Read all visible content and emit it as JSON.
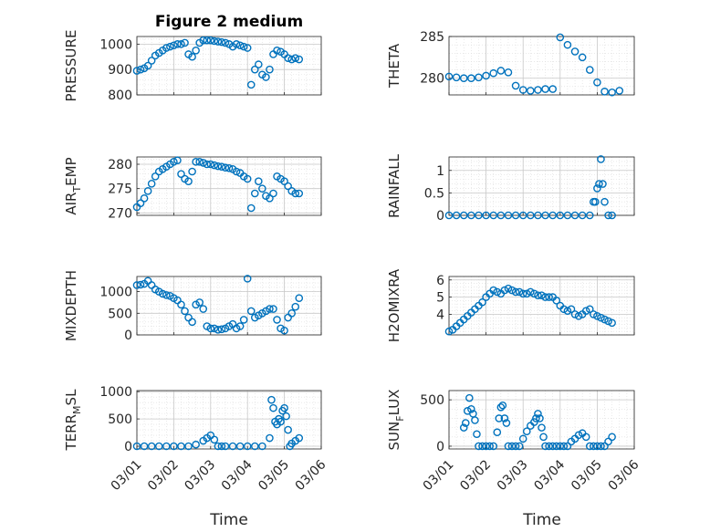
{
  "figure": {
    "title": "Figure 2 medium",
    "marker_color": "#0072BD",
    "x_ticks": [
      "03/01",
      "03/02",
      "03/03",
      "03/04",
      "03/05",
      "03/06"
    ],
    "x_label": "Time"
  },
  "chart_data": [
    {
      "type": "scatter",
      "id": "pressure",
      "ylabel": "PRESSURE",
      "ylabel_parts": [
        "PRESSURE"
      ],
      "xlim": [
        1,
        6
      ],
      "ylim": [
        800,
        1030
      ],
      "yticks": [
        800,
        900,
        1000
      ],
      "ytick_labels": [
        "800",
        "900",
        "1000"
      ],
      "title": "Figure 2 medium",
      "x": [
        1.0,
        1.1,
        1.2,
        1.3,
        1.4,
        1.5,
        1.6,
        1.7,
        1.8,
        1.9,
        2.0,
        2.1,
        2.2,
        2.3,
        2.4,
        2.5,
        2.6,
        2.7,
        2.8,
        2.9,
        3.0,
        3.1,
        3.2,
        3.3,
        3.4,
        3.5,
        3.6,
        3.7,
        3.8,
        3.9,
        4.0,
        4.1,
        4.2,
        4.3,
        4.4,
        4.5,
        4.6,
        4.7,
        4.8,
        4.9,
        5.0,
        5.1,
        5.2,
        5.3,
        5.4
      ],
      "y": [
        895,
        900,
        905,
        915,
        935,
        955,
        965,
        975,
        985,
        990,
        995,
        1000,
        1000,
        1005,
        960,
        950,
        975,
        1005,
        1015,
        1015,
        1015,
        1012,
        1010,
        1008,
        1005,
        1000,
        990,
        1000,
        995,
        990,
        985,
        840,
        900,
        920,
        880,
        870,
        900,
        960,
        975,
        970,
        960,
        945,
        940,
        945,
        940
      ]
    },
    {
      "type": "scatter",
      "id": "theta",
      "ylabel": "THETA",
      "ylabel_parts": [
        "THETA"
      ],
      "xlim": [
        1,
        6
      ],
      "ylim": [
        278,
        285
      ],
      "yticks": [
        280,
        285
      ],
      "ytick_labels": [
        "280",
        "285"
      ],
      "x": [
        1.0,
        1.2,
        1.4,
        1.6,
        1.8,
        2.0,
        2.2,
        2.4,
        2.6,
        2.8,
        3.0,
        3.2,
        3.4,
        3.6,
        3.8,
        4.0,
        4.2,
        4.4,
        4.6,
        4.8,
        5.0,
        5.2,
        5.4,
        5.6
      ],
      "y": [
        280.2,
        280.1,
        280.0,
        280.0,
        280.1,
        280.3,
        280.6,
        280.9,
        280.7,
        279.1,
        278.6,
        278.5,
        278.6,
        278.7,
        278.7,
        284.9,
        284.0,
        283.2,
        282.5,
        281.0,
        279.5,
        278.4,
        278.3,
        278.5
      ]
    },
    {
      "type": "scatter",
      "id": "air-temp",
      "ylabel": "AIR_TEMP",
      "ylabel_parts": [
        "AIR",
        "T",
        "EMP"
      ],
      "xlim": [
        1,
        6
      ],
      "ylim": [
        269.5,
        281.5
      ],
      "yticks": [
        270,
        275,
        280
      ],
      "ytick_labels": [
        "270",
        "275",
        "280"
      ],
      "x": [
        1.0,
        1.1,
        1.2,
        1.3,
        1.4,
        1.5,
        1.6,
        1.7,
        1.8,
        1.9,
        2.0,
        2.1,
        2.2,
        2.3,
        2.4,
        2.5,
        2.6,
        2.7,
        2.8,
        2.9,
        3.0,
        3.1,
        3.2,
        3.3,
        3.4,
        3.5,
        3.6,
        3.7,
        3.8,
        3.9,
        4.0,
        4.1,
        4.2,
        4.3,
        4.4,
        4.5,
        4.6,
        4.7,
        4.8,
        4.9,
        5.0,
        5.1,
        5.2,
        5.3,
        5.4
      ],
      "y": [
        271.2,
        272.0,
        273.0,
        274.5,
        276.0,
        277.5,
        278.5,
        279.0,
        279.5,
        280.0,
        280.5,
        280.8,
        278.0,
        277.0,
        276.5,
        278.5,
        280.5,
        280.5,
        280.3,
        280.0,
        280.0,
        279.8,
        279.6,
        279.5,
        279.3,
        279.2,
        279.0,
        278.5,
        278.2,
        277.5,
        277.0,
        271.0,
        274.0,
        276.5,
        275.0,
        273.5,
        273.0,
        274.0,
        277.5,
        277.0,
        276.5,
        275.5,
        274.5,
        274.0,
        274.0
      ]
    },
    {
      "type": "scatter",
      "id": "rainfall",
      "ylabel": "RAINFALL",
      "ylabel_parts": [
        "RAINFALL"
      ],
      "xlim": [
        1,
        6
      ],
      "ylim": [
        0,
        1.3
      ],
      "yticks": [
        0,
        0.5,
        1
      ],
      "ytick_labels": [
        "0",
        "0.5",
        "1"
      ],
      "x": [
        1.0,
        1.2,
        1.4,
        1.6,
        1.8,
        2.0,
        2.2,
        2.4,
        2.6,
        2.8,
        3.0,
        3.2,
        3.4,
        3.6,
        3.8,
        4.0,
        4.2,
        4.4,
        4.6,
        4.8,
        4.9,
        4.95,
        5.0,
        5.05,
        5.1,
        5.15,
        5.2,
        5.3,
        5.4
      ],
      "y": [
        0,
        0,
        0,
        0,
        0,
        0,
        0,
        0,
        0,
        0,
        0,
        0,
        0,
        0,
        0,
        0,
        0,
        0,
        0,
        0,
        0.3,
        0.3,
        0.6,
        0.7,
        1.25,
        0.7,
        0.3,
        0,
        0
      ]
    },
    {
      "type": "scatter",
      "id": "mixdepth",
      "ylabel": "MIXDEPTH",
      "ylabel_parts": [
        "MIXDEPTH"
      ],
      "xlim": [
        1,
        6
      ],
      "ylim": [
        0,
        1350
      ],
      "yticks": [
        0,
        500,
        1000
      ],
      "ytick_labels": [
        "0",
        "500",
        "1000"
      ],
      "x": [
        1.0,
        1.1,
        1.2,
        1.3,
        1.4,
        1.5,
        1.6,
        1.7,
        1.8,
        1.9,
        2.0,
        2.1,
        2.2,
        2.3,
        2.4,
        2.5,
        2.6,
        2.7,
        2.8,
        2.9,
        3.0,
        3.1,
        3.2,
        3.3,
        3.4,
        3.5,
        3.6,
        3.7,
        3.8,
        3.9,
        4.0,
        4.1,
        4.2,
        4.3,
        4.4,
        4.5,
        4.6,
        4.7,
        4.8,
        4.9,
        5.0,
        5.1,
        5.2,
        5.3,
        5.4
      ],
      "y": [
        1150,
        1160,
        1180,
        1250,
        1150,
        1050,
        1000,
        950,
        920,
        900,
        850,
        800,
        700,
        550,
        400,
        300,
        700,
        750,
        600,
        200,
        150,
        150,
        120,
        130,
        150,
        200,
        250,
        150,
        200,
        350,
        1300,
        550,
        400,
        450,
        500,
        550,
        600,
        600,
        350,
        150,
        100,
        400,
        500,
        650,
        850
      ]
    },
    {
      "type": "scatter",
      "id": "h2omixra",
      "ylabel": "H2OMIXRA",
      "ylabel_parts": [
        "H2OMIXRA"
      ],
      "xlim": [
        1,
        6
      ],
      "ylim": [
        2.8,
        6.2
      ],
      "yticks": [
        4,
        5,
        6
      ],
      "ytick_labels": [
        "4",
        "5",
        "6"
      ],
      "x": [
        1.0,
        1.1,
        1.2,
        1.3,
        1.4,
        1.5,
        1.6,
        1.7,
        1.8,
        1.9,
        2.0,
        2.1,
        2.2,
        2.3,
        2.4,
        2.5,
        2.6,
        2.7,
        2.8,
        2.9,
        3.0,
        3.1,
        3.2,
        3.3,
        3.4,
        3.5,
        3.6,
        3.7,
        3.8,
        3.9,
        4.0,
        4.1,
        4.2,
        4.3,
        4.4,
        4.5,
        4.6,
        4.7,
        4.8,
        4.9,
        5.0,
        5.1,
        5.2,
        5.3,
        5.4
      ],
      "y": [
        3.0,
        3.1,
        3.3,
        3.5,
        3.7,
        3.9,
        4.1,
        4.3,
        4.5,
        4.7,
        5.0,
        5.2,
        5.4,
        5.3,
        5.2,
        5.4,
        5.5,
        5.4,
        5.3,
        5.3,
        5.2,
        5.2,
        5.3,
        5.2,
        5.1,
        5.1,
        5.0,
        5.0,
        5.0,
        4.8,
        4.5,
        4.3,
        4.2,
        4.3,
        4.0,
        3.9,
        4.0,
        4.2,
        4.3,
        4.0,
        3.9,
        3.8,
        3.7,
        3.6,
        3.5
      ]
    },
    {
      "type": "scatter",
      "id": "terr-msl",
      "ylabel": "TERR_MSL",
      "ylabel_parts": [
        "TERR",
        "M",
        "SL"
      ],
      "xlim": [
        1,
        6
      ],
      "ylim": [
        -50,
        1020
      ],
      "yticks": [
        0,
        500,
        1000
      ],
      "ytick_labels": [
        "0",
        "500",
        "1000"
      ],
      "x": [
        1.0,
        1.2,
        1.4,
        1.6,
        1.8,
        2.0,
        2.2,
        2.4,
        2.6,
        2.8,
        2.9,
        3.0,
        3.1,
        3.2,
        3.3,
        3.4,
        3.6,
        3.8,
        4.0,
        4.2,
        4.4,
        4.6,
        4.65,
        4.7,
        4.75,
        4.8,
        4.85,
        4.9,
        4.95,
        5.0,
        5.05,
        5.1,
        5.15,
        5.2,
        5.3,
        5.4
      ],
      "y": [
        0,
        0,
        0,
        0,
        0,
        0,
        0,
        0,
        30,
        100,
        150,
        200,
        120,
        0,
        0,
        0,
        0,
        0,
        0,
        0,
        0,
        150,
        850,
        700,
        450,
        400,
        500,
        450,
        650,
        700,
        550,
        300,
        0,
        50,
        100,
        150
      ]
    },
    {
      "type": "scatter",
      "id": "sun-flux",
      "ylabel": "SUN_FLUX",
      "ylabel_parts": [
        "SUN",
        "F",
        "LUX"
      ],
      "xlim": [
        1,
        6
      ],
      "ylim": [
        -30,
        600
      ],
      "yticks": [
        0,
        500
      ],
      "ytick_labels": [
        "0",
        "500"
      ],
      "x": [
        1.4,
        1.45,
        1.5,
        1.55,
        1.6,
        1.65,
        1.7,
        1.75,
        1.8,
        1.9,
        2.0,
        2.1,
        2.2,
        2.3,
        2.35,
        2.4,
        2.45,
        2.5,
        2.55,
        2.6,
        2.7,
        2.8,
        2.9,
        3.0,
        3.1,
        3.2,
        3.3,
        3.35,
        3.4,
        3.45,
        3.5,
        3.55,
        3.6,
        3.7,
        3.8,
        3.9,
        4.0,
        4.1,
        4.2,
        4.3,
        4.4,
        4.5,
        4.6,
        4.7,
        4.8,
        4.9,
        5.0,
        5.1,
        5.2,
        5.3,
        5.4
      ],
      "y": [
        200,
        250,
        380,
        520,
        400,
        350,
        280,
        130,
        0,
        0,
        0,
        0,
        0,
        150,
        300,
        420,
        440,
        300,
        250,
        0,
        0,
        0,
        0,
        80,
        160,
        220,
        260,
        300,
        350,
        300,
        200,
        100,
        0,
        0,
        0,
        0,
        0,
        0,
        0,
        50,
        80,
        120,
        140,
        100,
        0,
        0,
        0,
        0,
        0,
        50,
        100
      ]
    }
  ]
}
